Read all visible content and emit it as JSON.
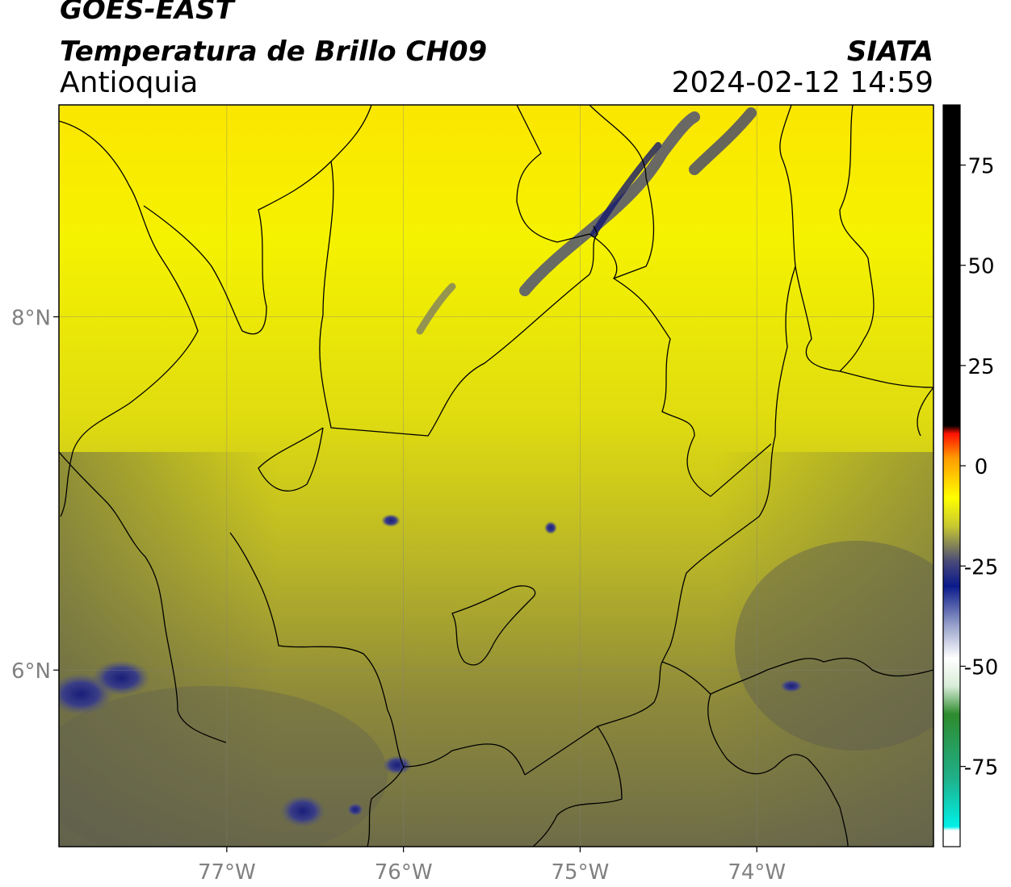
{
  "header": {
    "line1": "GOES-EAST",
    "line2": "Temperatura de Brillo CH09",
    "line3": "Antioquia",
    "org": "SIATA",
    "datetime": "2024-02-12 14:59"
  },
  "map": {
    "lon_range": [
      -77.95,
      -73.0
    ],
    "lat_range": [
      5.0,
      9.2
    ],
    "lon_ticks": [
      {
        "value": -77,
        "label": "77°W"
      },
      {
        "value": -76,
        "label": "76°W"
      },
      {
        "value": -75,
        "label": "75°W"
      },
      {
        "value": -74,
        "label": "74°W"
      }
    ],
    "lat_ticks": [
      {
        "value": 8,
        "label": "8°N"
      },
      {
        "value": 6,
        "label": "6°N"
      }
    ],
    "grid": true
  },
  "colorbar": {
    "range": [
      -95,
      90
    ],
    "ticks": [
      {
        "value": 75,
        "label": "75"
      },
      {
        "value": 50,
        "label": "50"
      },
      {
        "value": 25,
        "label": "25"
      },
      {
        "value": 0,
        "label": "0"
      },
      {
        "value": -25,
        "label": "-25"
      },
      {
        "value": -50,
        "label": "-50"
      },
      {
        "value": -75,
        "label": "-75"
      }
    ],
    "stops": [
      {
        "value": -95,
        "color": "#ffffff"
      },
      {
        "value": -91,
        "color": "#ffffff"
      },
      {
        "value": -90,
        "color": "#00f0e8"
      },
      {
        "value": -78,
        "color": "#1fb08a"
      },
      {
        "value": -62,
        "color": "#2e8b2e"
      },
      {
        "value": -55,
        "color": "#d8ecd8"
      },
      {
        "value": -48,
        "color": "#ffffff"
      },
      {
        "value": -40,
        "color": "#9aa4cc"
      },
      {
        "value": -30,
        "color": "#0a1a8a"
      },
      {
        "value": -24,
        "color": "#48487a"
      },
      {
        "value": -15,
        "color": "#c8c830"
      },
      {
        "value": -8,
        "color": "#ffff00"
      },
      {
        "value": 2,
        "color": "#ff9a00"
      },
      {
        "value": 8,
        "color": "#ff1000"
      },
      {
        "value": 10,
        "color": "#000000"
      },
      {
        "value": 90,
        "color": "#000000"
      }
    ]
  }
}
